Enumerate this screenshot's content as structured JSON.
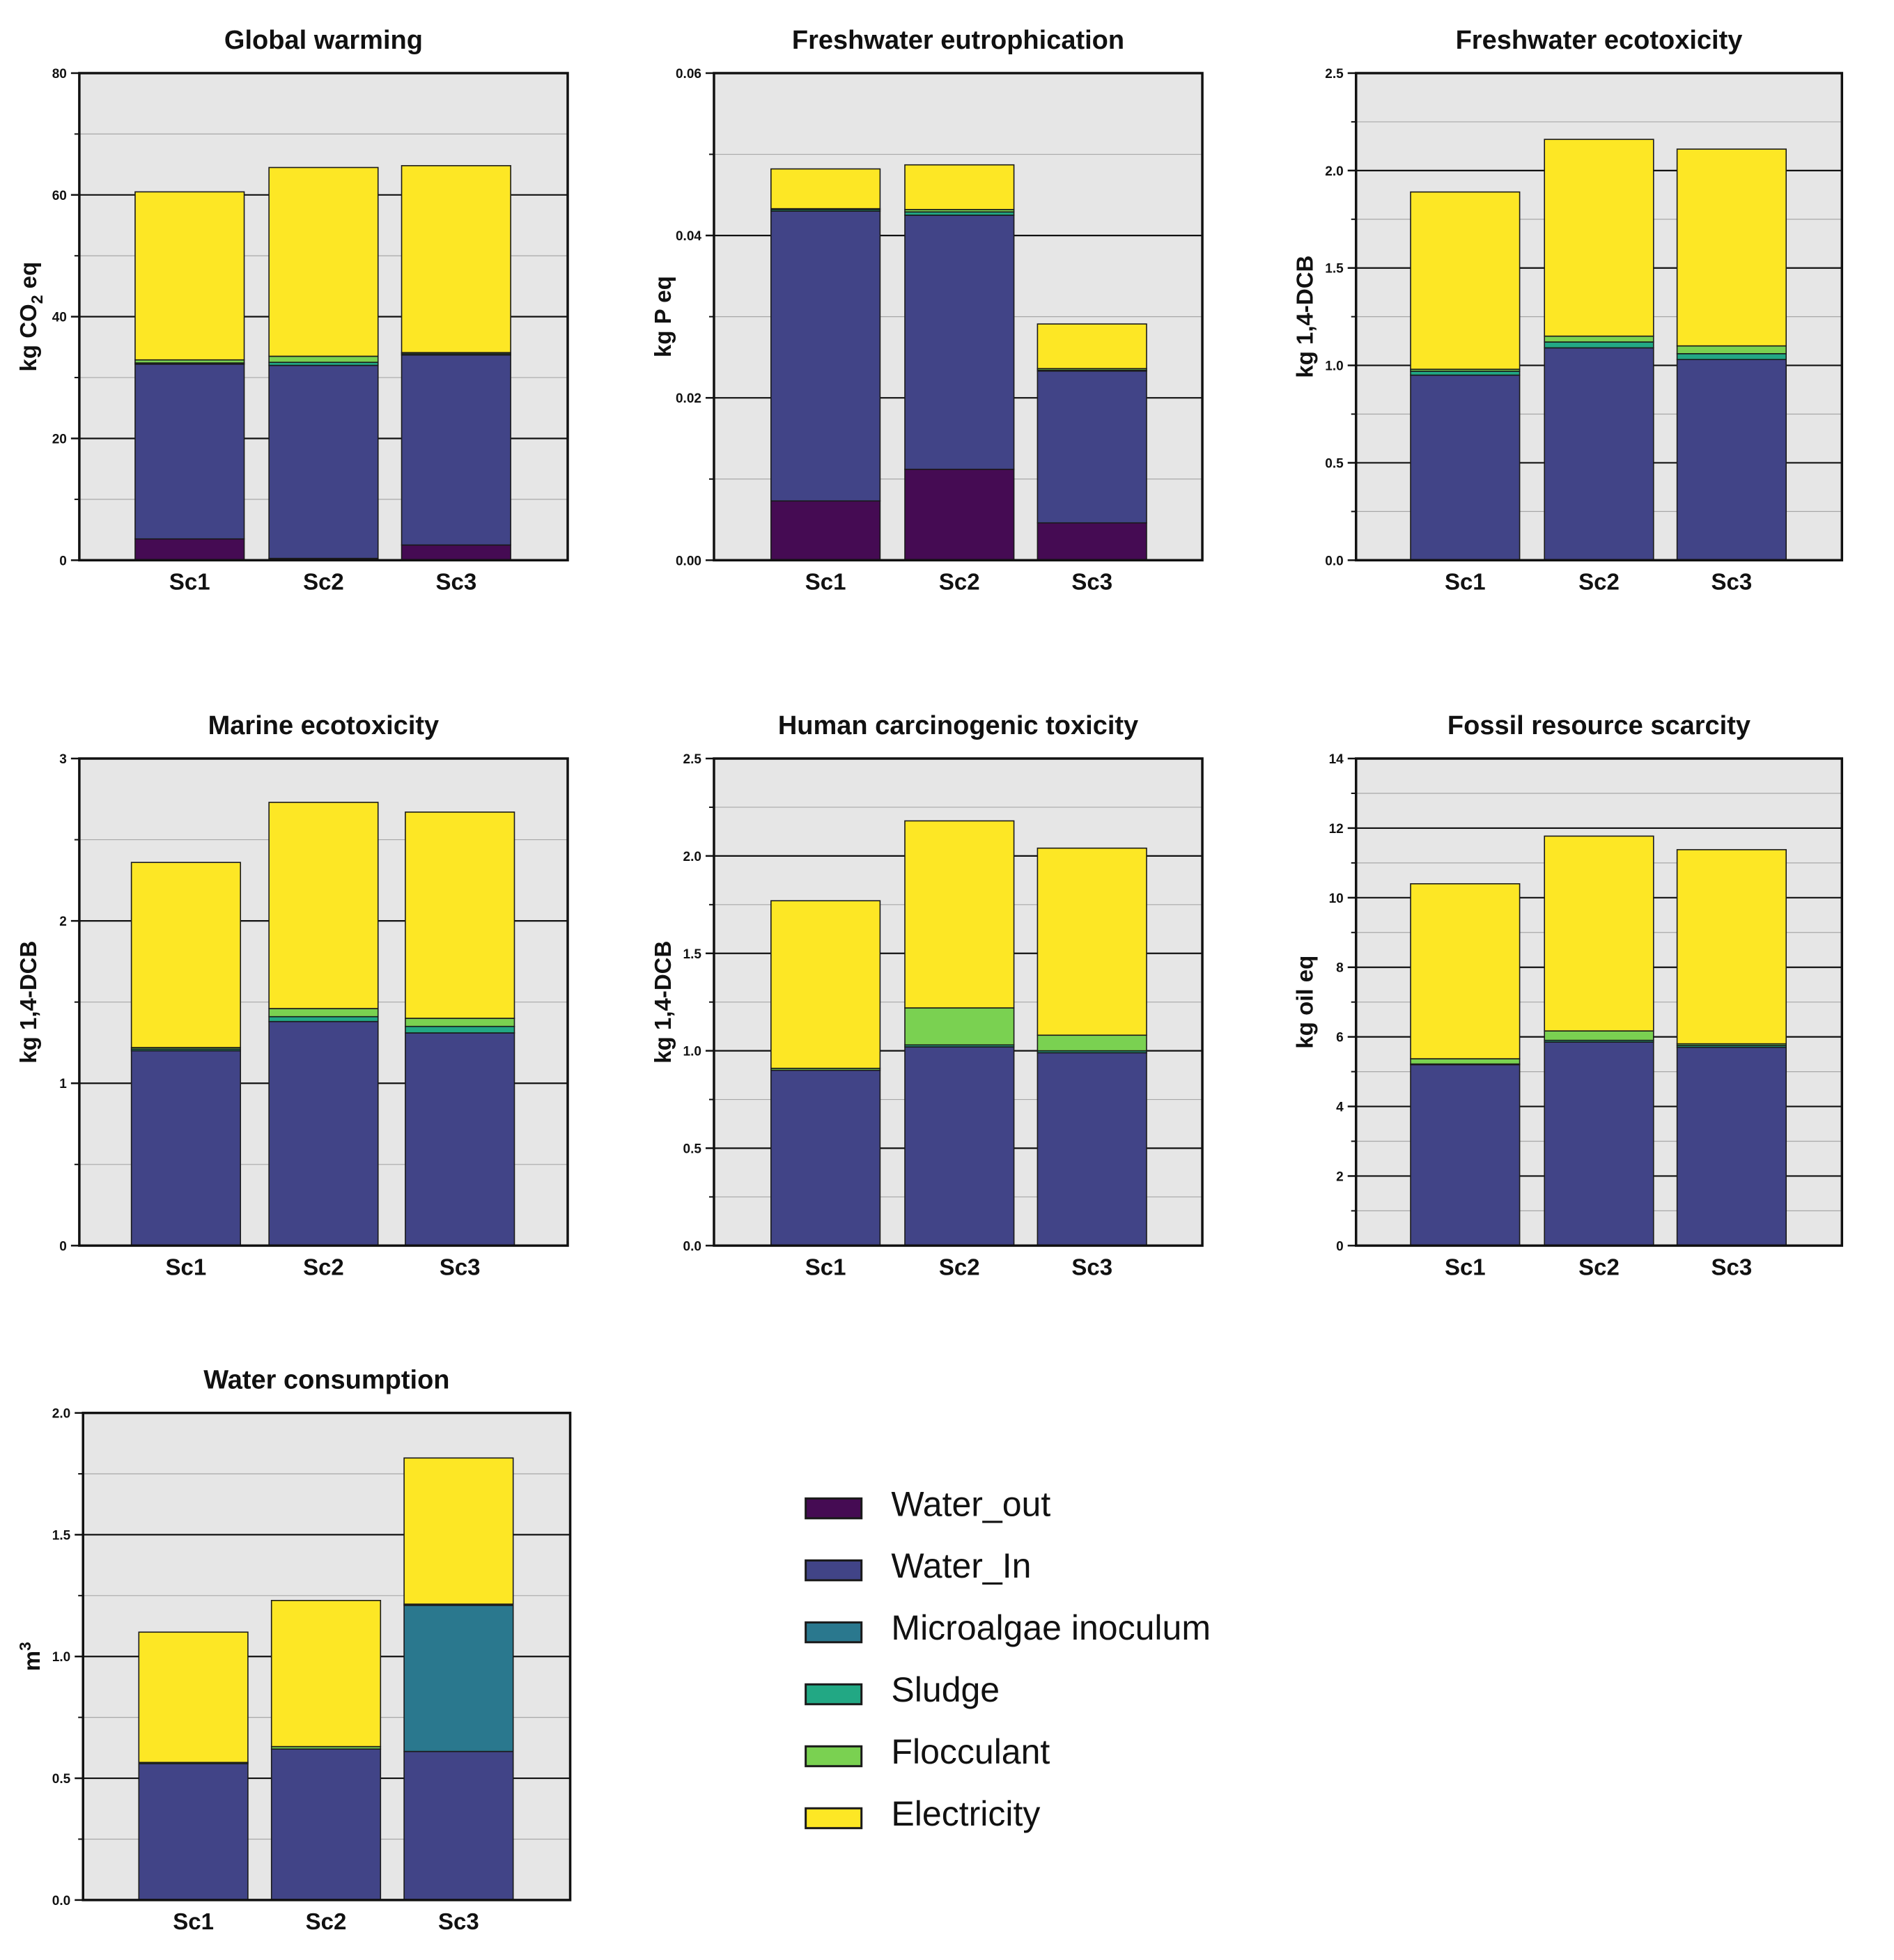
{
  "legend": [
    {
      "name": "Water_out",
      "color": "#450b53"
    },
    {
      "name": "Water_In",
      "color": "#414487"
    },
    {
      "name": "Microalgae inoculum",
      "color": "#2a788e"
    },
    {
      "name": "Sludge",
      "color": "#22a884"
    },
    {
      "name": "Flocculant",
      "color": "#7ad151"
    },
    {
      "name": "Electricity",
      "color": "#fde725"
    }
  ],
  "chart_data": [
    {
      "type": "bar",
      "stacked": true,
      "title": "Global warming",
      "ylabel": "kg CO2 eq",
      "ylabel_main": "kg CO",
      "ylabel_sub": "2",
      "ylabel_tail": " eq",
      "ylim": [
        0,
        80
      ],
      "ticks": [
        "0",
        "20",
        "40",
        "60",
        "80"
      ],
      "categories": [
        "Sc1",
        "Sc2",
        "Sc3"
      ],
      "series": [
        {
          "name": "Water_out",
          "values": [
            3.5,
            0.3,
            2.5
          ]
        },
        {
          "name": "Water_In",
          "values": [
            28.7,
            31.7,
            31.2
          ]
        },
        {
          "name": "Microalgae inoculum",
          "values": [
            0,
            0,
            0
          ]
        },
        {
          "name": "Sludge",
          "values": [
            0.2,
            0.5,
            0.2
          ]
        },
        {
          "name": "Flocculant",
          "values": [
            0.5,
            1.0,
            0.2
          ]
        },
        {
          "name": "Electricity",
          "values": [
            27.6,
            31.0,
            30.7
          ]
        }
      ]
    },
    {
      "type": "bar",
      "stacked": true,
      "title": "Freshwater eutrophication",
      "ylabel": "kg P eq",
      "ylim": [
        0,
        0.06
      ],
      "ticks": [
        "0.00",
        "0.02",
        "0.04",
        "0.06"
      ],
      "categories": [
        "Sc1",
        "Sc2",
        "Sc3"
      ],
      "series": [
        {
          "name": "Water_out",
          "values": [
            0.0073,
            0.0112,
            0.0046
          ]
        },
        {
          "name": "Water_In",
          "values": [
            0.0357,
            0.0313,
            0.0187
          ]
        },
        {
          "name": "Microalgae inoculum",
          "values": [
            0,
            0,
            0
          ]
        },
        {
          "name": "Sludge",
          "values": [
            0.0002,
            0.0004,
            0.0001
          ]
        },
        {
          "name": "Flocculant",
          "values": [
            0.0001,
            0.0003,
            0.0002
          ]
        },
        {
          "name": "Electricity",
          "values": [
            0.0049,
            0.0055,
            0.0055
          ]
        }
      ]
    },
    {
      "type": "bar",
      "stacked": true,
      "title": "Freshwater ecotoxicity",
      "ylabel": "kg 1,4-DCB",
      "ylim": [
        0,
        2.5
      ],
      "ticks": [
        "0.0",
        "0.5",
        "1.0",
        "1.5",
        "2.0",
        "2.5"
      ],
      "categories": [
        "Sc1",
        "Sc2",
        "Sc3"
      ],
      "series": [
        {
          "name": "Water_out",
          "values": [
            0,
            0,
            0
          ]
        },
        {
          "name": "Water_In",
          "values": [
            0.95,
            1.09,
            1.03
          ]
        },
        {
          "name": "Microalgae inoculum",
          "values": [
            0,
            0,
            0
          ]
        },
        {
          "name": "Sludge",
          "values": [
            0.02,
            0.03,
            0.03
          ]
        },
        {
          "name": "Flocculant",
          "values": [
            0.01,
            0.03,
            0.04
          ]
        },
        {
          "name": "Electricity",
          "values": [
            0.91,
            1.01,
            1.01
          ]
        }
      ]
    },
    {
      "type": "bar",
      "stacked": true,
      "title": "Marine ecotoxicity",
      "ylabel": "kg 1,4-DCB",
      "ylim": [
        0,
        3
      ],
      "ticks": [
        "0",
        "1",
        "2",
        "3"
      ],
      "categories": [
        "Sc1",
        "Sc2",
        "Sc3"
      ],
      "series": [
        {
          "name": "Water_out",
          "values": [
            0,
            0,
            0
          ]
        },
        {
          "name": "Water_In",
          "values": [
            1.2,
            1.38,
            1.31
          ]
        },
        {
          "name": "Microalgae inoculum",
          "values": [
            0,
            0,
            0
          ]
        },
        {
          "name": "Sludge",
          "values": [
            0.01,
            0.03,
            0.04
          ]
        },
        {
          "name": "Flocculant",
          "values": [
            0.01,
            0.05,
            0.05
          ]
        },
        {
          "name": "Electricity",
          "values": [
            1.14,
            1.27,
            1.27
          ]
        }
      ]
    },
    {
      "type": "bar",
      "stacked": true,
      "title": "Human carcinogenic toxicity",
      "ylabel": "kg 1,4-DCB",
      "ylim": [
        0,
        2.5
      ],
      "ticks": [
        "0.0",
        "0.5",
        "1.0",
        "1.5",
        "2.0",
        "2.5"
      ],
      "categories": [
        "Sc1",
        "Sc2",
        "Sc3"
      ],
      "series": [
        {
          "name": "Water_out",
          "values": [
            0,
            0,
            0
          ]
        },
        {
          "name": "Water_In",
          "values": [
            0.9,
            1.02,
            0.99
          ]
        },
        {
          "name": "Microalgae inoculum",
          "values": [
            0,
            0,
            0
          ]
        },
        {
          "name": "Sludge",
          "values": [
            0,
            0.01,
            0.01
          ]
        },
        {
          "name": "Flocculant",
          "values": [
            0.01,
            0.19,
            0.08
          ]
        },
        {
          "name": "Electricity",
          "values": [
            0.86,
            0.96,
            0.96
          ]
        }
      ]
    },
    {
      "type": "bar",
      "stacked": true,
      "title": "Fossil resource scarcity",
      "ylabel": "kg oil eq",
      "ylim": [
        0,
        14
      ],
      "ticks": [
        "0",
        "2",
        "4",
        "6",
        "8",
        "10",
        "12",
        "14"
      ],
      "categories": [
        "Sc1",
        "Sc2",
        "Sc3"
      ],
      "series": [
        {
          "name": "Water_out",
          "values": [
            0,
            0,
            0
          ]
        },
        {
          "name": "Water_In",
          "values": [
            5.2,
            5.85,
            5.7
          ]
        },
        {
          "name": "Microalgae inoculum",
          "values": [
            0,
            0,
            0
          ]
        },
        {
          "name": "Sludge",
          "values": [
            0.02,
            0.05,
            0.05
          ]
        },
        {
          "name": "Flocculant",
          "values": [
            0.15,
            0.27,
            0.05
          ]
        },
        {
          "name": "Electricity",
          "values": [
            5.03,
            5.6,
            5.58
          ]
        }
      ]
    },
    {
      "type": "bar",
      "stacked": true,
      "title": "Water consumption",
      "ylabel": "m3",
      "ylabel_main": "m",
      "ylabel_sup": "3",
      "ylim": [
        0,
        2.0
      ],
      "ticks": [
        "0.0",
        "0.5",
        "1.0",
        "1.5",
        "2.0"
      ],
      "categories": [
        "Sc1",
        "Sc2",
        "Sc3"
      ],
      "series": [
        {
          "name": "Water_out",
          "values": [
            0,
            0,
            0
          ]
        },
        {
          "name": "Water_In",
          "values": [
            0.56,
            0.62,
            0.61
          ]
        },
        {
          "name": "Microalgae inoculum",
          "values": [
            0,
            0,
            0.6
          ]
        },
        {
          "name": "Sludge",
          "values": [
            0,
            0,
            0
          ]
        },
        {
          "name": "Flocculant",
          "values": [
            0.005,
            0.01,
            0.005
          ]
        },
        {
          "name": "Electricity",
          "values": [
            0.535,
            0.6,
            0.6
          ]
        }
      ]
    }
  ]
}
